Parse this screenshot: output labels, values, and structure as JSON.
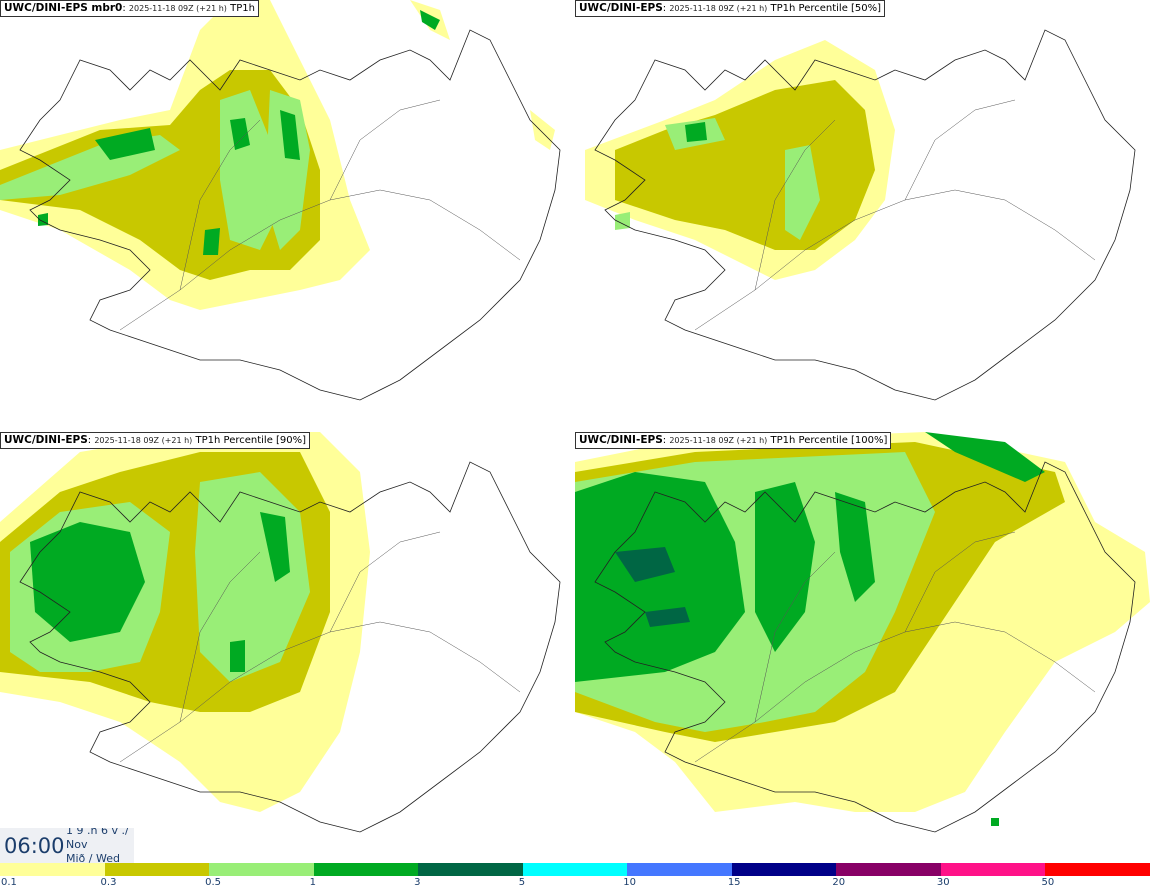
{
  "panels": [
    {
      "model": "UWC/DINI-EPS mbr0",
      "run": "2025-11-18 09Z (+21 h)",
      "field": "TP1h"
    },
    {
      "model": "UWC/DINI-EPS",
      "run": "2025-11-18 09Z (+21 h)",
      "field": "TP1h Percentile [50%]"
    },
    {
      "model": "UWC/DINI-EPS",
      "run": "2025-11-18 09Z (+21 h)",
      "field": "TP1h Percentile [90%]"
    },
    {
      "model": "UWC/DINI-EPS",
      "run": "2025-11-18 09Z (+21 h)",
      "field": "TP1h Percentile [100%]"
    }
  ],
  "time": {
    "clock": "06:00",
    "line1": "1 9 .n 6 v ./",
    "line2": "Nov",
    "line3": "Mið / Wed"
  },
  "colorbar": {
    "colors": [
      "#ffff99",
      "#c8c800",
      "#99ee77",
      "#00aa22",
      "#006644",
      "#00ffff",
      "#4477ff",
      "#000088",
      "#880066",
      "#ff1188",
      "#ff0000"
    ],
    "labels": [
      "0.1",
      "0.3",
      "0.5",
      "1",
      "3",
      "5",
      "10",
      "15",
      "20",
      "30",
      "50"
    ]
  }
}
